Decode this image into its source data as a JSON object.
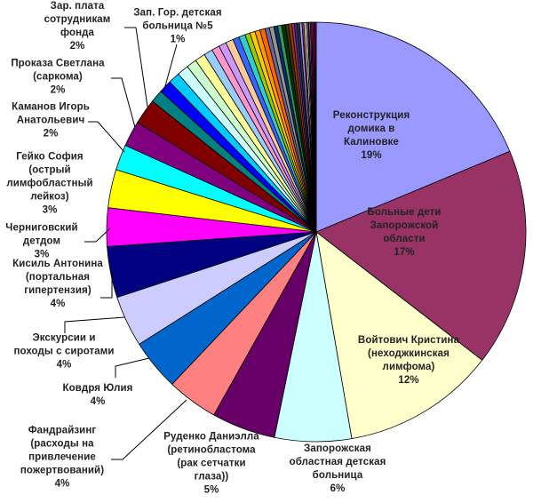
{
  "chart_data": {
    "type": "pie",
    "title": "",
    "start": "12 o'clock, clockwise",
    "slices": [
      {
        "label": "Реконструкция\nдомика в\nКалиновке",
        "percent_label": "19%",
        "value": 19,
        "color": "#9999FF"
      },
      {
        "label": "Больные дети\nЗапорожской\nобласти",
        "percent_label": "17%",
        "value": 17,
        "color": "#993366"
      },
      {
        "label": "Войтович Кристина\n(неходжкинская\nлимфома)",
        "percent_label": "12%",
        "value": 12,
        "color": "#FFFFCC"
      },
      {
        "label": "Запорожская\nобластная детская\nбольница",
        "percent_label": "6%",
        "value": 6,
        "color": "#CCFFFF"
      },
      {
        "label": "Руденко Даниэлла\n(ретинобластома\n(рак сетчатки\nглаза))",
        "percent_label": "5%",
        "value": 5,
        "color": "#660066"
      },
      {
        "label": "Фандрайзинг\n(расходы на\nпривлечение\nпожертвований)",
        "percent_label": "4%",
        "value": 4,
        "color": "#FF8080"
      },
      {
        "label": "Ковдря Юлия",
        "percent_label": "4%",
        "value": 4,
        "color": "#0066CC"
      },
      {
        "label": "Экскурсии и\nпоходы с сиротами",
        "percent_label": "4%",
        "value": 4,
        "color": "#CCCCFF"
      },
      {
        "label": "Кисиль Антонина\n(портальная\nгипертензия)",
        "percent_label": "4%",
        "value": 4,
        "color": "#000080"
      },
      {
        "label": "Черниговский\nдетдом",
        "percent_label": "3%",
        "value": 3,
        "color": "#FF00FF"
      },
      {
        "label": "Гейко София\n(острый\nлимфобластный\nлейкоз)",
        "percent_label": "3%",
        "value": 3,
        "color": "#FFFF00"
      },
      {
        "label": "Каманов Игорь\nАнатольевич",
        "percent_label": "2%",
        "value": 2,
        "color": "#00FFFF"
      },
      {
        "label": "Проказа Светлана\n(саркома)",
        "percent_label": "2%",
        "value": 2,
        "color": "#800080"
      },
      {
        "label": "Зар. плата\nсотрудникам\nфонда",
        "percent_label": "2%",
        "value": 2,
        "color": "#800000"
      },
      {
        "label": "Зап. Гор. детская\nбольница №5",
        "percent_label": "1%",
        "value": 1,
        "color": "#008080"
      }
    ],
    "unlabeled_values": [
      1,
      0.9,
      0.9,
      0.8,
      0.8,
      0.7,
      0.6,
      0.6,
      0.6,
      0.5,
      0.5,
      0.4,
      0.4,
      0.4,
      0.4,
      0.35,
      0.35,
      0.3,
      0.3,
      0.3,
      0.25,
      0.25,
      0.2,
      0.2,
      0.2,
      0.2,
      0.15,
      0.15,
      0.12,
      0.12,
      0.1,
      0.1,
      0.1,
      0.1,
      0.08,
      0.08
    ],
    "unlabeled_colors": [
      "#0000FF",
      "#00CCFF",
      "#CCFFFF",
      "#CCFFCC",
      "#FFFF99",
      "#99CCFF",
      "#FF99CC",
      "#CC99FF",
      "#FFCC99",
      "#3366FF",
      "#33CCCC",
      "#99CC00",
      "#FFCC00",
      "#FF9900",
      "#FF6600",
      "#666699",
      "#969696",
      "#003366",
      "#339966",
      "#003300",
      "#333300",
      "#993300",
      "#993366",
      "#333399",
      "#333333",
      "#9999FF",
      "#993366",
      "#FFFFCC",
      "#CCFFFF",
      "#660066",
      "#FF8080",
      "#0066CC",
      "#FF0000",
      "#FF00FF",
      "#800000",
      "#CC0066"
    ],
    "legend": "none"
  }
}
